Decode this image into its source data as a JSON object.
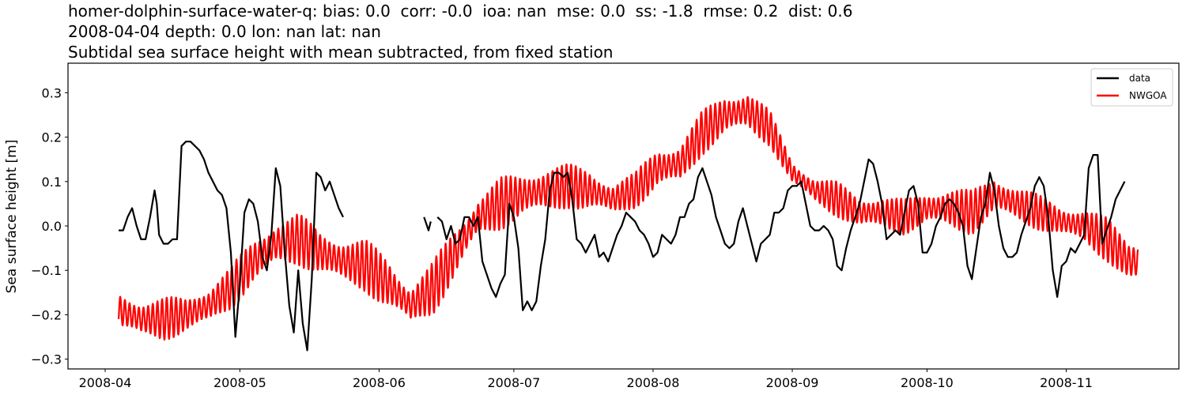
{
  "titles": {
    "line1": "homer-dolphin-surface-water-q: bias: 0.0  corr: -0.0  ioa: nan  mse: 0.0  ss: -1.8  rmse: 0.2  dist: 0.6",
    "line2": "2008-04-04 depth: 0.0 lon: nan lat: nan",
    "line3": "Subtidal sea surface height with mean subtracted, from fixed station"
  },
  "colors": {
    "data": "#000000",
    "model": "#ff0000",
    "axis": "#000000",
    "legend_border": "#cccccc"
  },
  "chart_data": {
    "type": "line",
    "title": "homer-dolphin-surface-water-q: bias: 0.0  corr: -0.0  ioa: nan  mse: 0.0  ss: -1.8  rmse: 0.2  dist: 0.6 / 2008-04-04 depth: 0.0 lon: nan lat: nan / Subtidal sea surface height with mean subtracted, from fixed station",
    "xlabel": "",
    "ylabel": "Sea surface height [m]",
    "ylim": [
      -0.33,
      0.36
    ],
    "xlim": [
      "2008-03-27",
      "2008-11-24"
    ],
    "grid": false,
    "legend_position": "upper right",
    "xticks": [
      "2008-04",
      "2008-05",
      "2008-06",
      "2008-07",
      "2008-08",
      "2008-09",
      "2008-10",
      "2008-11"
    ],
    "yticks": [
      "0.3",
      "0.2",
      "0.1",
      "0.0",
      "−0.1",
      "−0.2",
      "−0.3"
    ],
    "series": [
      {
        "name": "data",
        "color": "#000000",
        "day_offset_from_2008_04_01": [
          3,
          4,
          5,
          6,
          7,
          8,
          9,
          10,
          11,
          11.5,
          12,
          13,
          14,
          15,
          16,
          17,
          18,
          19,
          20,
          21,
          22,
          23,
          24,
          25,
          26,
          27,
          28,
          29,
          30,
          31,
          32,
          33,
          34,
          35,
          36,
          37,
          38,
          39,
          40,
          41,
          42,
          43,
          44,
          45,
          46,
          47,
          48,
          49,
          50,
          51,
          52,
          53,
          null,
          71,
          72,
          72.5,
          null,
          74,
          75,
          76,
          77,
          78,
          79,
          80,
          81,
          82,
          83,
          84,
          85,
          86,
          87,
          88,
          89,
          90,
          91,
          92,
          93,
          94,
          95,
          96,
          97,
          98,
          99,
          100,
          101,
          102,
          103,
          104,
          105,
          106,
          107,
          108,
          109,
          110,
          111,
          112,
          113,
          114,
          115,
          116,
          117,
          118,
          119,
          120,
          121,
          122,
          123,
          124,
          125,
          126,
          127,
          128,
          129,
          130,
          131,
          132,
          133,
          134,
          135,
          136,
          137,
          138,
          139,
          140,
          141,
          142,
          143,
          144,
          145,
          146,
          147,
          148,
          149,
          150,
          151,
          152,
          153,
          154,
          155,
          156,
          157,
          158,
          159,
          160,
          161,
          162,
          163,
          164,
          165,
          166,
          167,
          168,
          169,
          170,
          171,
          172,
          173,
          174,
          175,
          176,
          177,
          178,
          179,
          180,
          181,
          182,
          183,
          184,
          185,
          186,
          187,
          188,
          189,
          190,
          191,
          192,
          193,
          194,
          195,
          196,
          197,
          198,
          199,
          200,
          201,
          202,
          203,
          204,
          205,
          206,
          207,
          208,
          209,
          210,
          211,
          212,
          213,
          214,
          215,
          216,
          217,
          218,
          219,
          220,
          221,
          222,
          223,
          224,
          225,
          226,
          227
        ],
        "values": [
          -0.01,
          -0.01,
          0.02,
          0.04,
          0.0,
          -0.03,
          -0.03,
          0.02,
          0.08,
          0.05,
          -0.02,
          -0.04,
          -0.04,
          -0.03,
          -0.03,
          0.18,
          0.19,
          0.19,
          0.18,
          0.17,
          0.15,
          0.12,
          0.1,
          0.08,
          0.07,
          0.04,
          -0.06,
          -0.25,
          -0.13,
          0.03,
          0.06,
          0.05,
          0.01,
          -0.07,
          -0.1,
          -0.02,
          0.13,
          0.09,
          -0.06,
          -0.18,
          -0.24,
          -0.1,
          -0.22,
          -0.28,
          -0.12,
          0.12,
          0.11,
          0.08,
          0.1,
          0.07,
          0.04,
          0.02,
          null,
          0.02,
          -0.01,
          0.01,
          null,
          0.02,
          0.01,
          -0.03,
          0.0,
          -0.04,
          -0.03,
          0.02,
          0.02,
          0.0,
          0.02,
          -0.08,
          -0.11,
          -0.14,
          -0.16,
          -0.13,
          -0.11,
          0.05,
          0.02,
          -0.05,
          -0.19,
          -0.17,
          -0.19,
          -0.17,
          -0.09,
          -0.03,
          0.08,
          0.12,
          0.12,
          0.11,
          0.12,
          0.06,
          -0.03,
          -0.04,
          -0.06,
          -0.04,
          -0.02,
          -0.07,
          -0.06,
          -0.08,
          -0.05,
          -0.02,
          0.0,
          0.03,
          0.02,
          0.01,
          -0.01,
          -0.02,
          -0.04,
          -0.07,
          -0.06,
          -0.02,
          -0.03,
          -0.04,
          -0.02,
          0.02,
          0.02,
          0.05,
          0.06,
          0.11,
          0.13,
          0.1,
          0.07,
          0.02,
          -0.01,
          -0.04,
          -0.05,
          -0.04,
          0.01,
          0.04,
          0.0,
          -0.04,
          -0.08,
          -0.04,
          -0.03,
          -0.02,
          0.03,
          0.03,
          0.04,
          0.08,
          0.09,
          0.09,
          0.1,
          0.05,
          0.0,
          -0.01,
          -0.01,
          0.0,
          -0.01,
          -0.03,
          -0.09,
          -0.1,
          -0.05,
          -0.01,
          0.02,
          0.05,
          0.1,
          0.15,
          0.14,
          0.1,
          0.05,
          -0.03,
          -0.02,
          -0.01,
          -0.02,
          0.03,
          0.08,
          0.09,
          0.05,
          -0.06,
          -0.06,
          -0.04,
          0.0,
          0.02,
          0.05,
          0.06,
          0.05,
          0.03,
          0.0,
          -0.09,
          -0.12,
          -0.05,
          0.02,
          0.05,
          0.12,
          0.08,
          0.0,
          -0.05,
          -0.07,
          -0.07,
          -0.06,
          -0.02,
          0.01,
          0.04,
          0.09,
          0.11,
          0.09,
          0.02,
          -0.1,
          -0.16,
          -0.09,
          -0.08,
          -0.05,
          -0.06,
          -0.04,
          -0.02,
          0.13,
          0.16,
          0.16,
          -0.04,
          -0.01,
          0.02,
          0.06,
          0.08,
          0.1,
          0.11,
          0.12,
          0.13,
          0.1,
          0.07,
          0.08,
          0.09,
          0.1,
          -0.02,
          0.0,
          0.04,
          0.12,
          0.13,
          0.18,
          0.18,
          0.17,
          0.19,
          0.18,
          0.18,
          0.17,
          0.15,
          0.1,
          0.04,
          0.02,
          0.06,
          0.11,
          0.12,
          0.12,
          0.06,
          0.02,
          -0.07,
          -0.18,
          -0.26,
          -0.23,
          -0.08,
          0.03,
          0.05,
          0.05
        ]
      },
      {
        "name": "NWGOA",
        "color": "#ff0000",
        "description": "tidal-oscillating model; mean (subtidal) and half-amplitude envelope sampled every 5 days",
        "day_offset_from_2008_04_01": [
          3,
          8,
          13,
          18,
          23,
          28,
          33,
          38,
          43,
          48,
          53,
          58,
          63,
          68,
          73,
          78,
          83,
          88,
          93,
          98,
          103,
          108,
          113,
          118,
          123,
          128,
          133,
          138,
          143,
          148,
          153,
          158,
          163,
          168,
          173,
          178,
          183,
          188,
          193,
          198,
          203,
          208,
          213,
          218,
          223,
          228,
          230
        ],
        "mean": [
          -0.19,
          -0.21,
          -0.21,
          -0.2,
          -0.18,
          -0.14,
          -0.08,
          -0.04,
          -0.03,
          -0.06,
          -0.08,
          -0.09,
          -0.13,
          -0.18,
          -0.14,
          -0.06,
          0.02,
          0.05,
          0.07,
          0.08,
          0.09,
          0.08,
          0.06,
          0.08,
          0.13,
          0.14,
          0.21,
          0.25,
          0.26,
          0.22,
          0.12,
          0.08,
          0.06,
          0.03,
          0.03,
          0.02,
          0.04,
          0.04,
          0.03,
          0.07,
          0.05,
          0.03,
          0.01,
          0.0,
          -0.03,
          -0.08,
          -0.08
        ],
        "amplitude": [
          0.04,
          0.05,
          0.05,
          0.04,
          0.05,
          0.05,
          0.05,
          0.06,
          0.06,
          0.05,
          0.06,
          0.06,
          0.06,
          0.05,
          0.06,
          0.06,
          0.05,
          0.06,
          0.05,
          0.06,
          0.05,
          0.05,
          0.04,
          0.04,
          0.05,
          0.05,
          0.05,
          0.05,
          0.05,
          0.04,
          0.03,
          0.03,
          0.04,
          0.04,
          0.04,
          0.04,
          0.04,
          0.05,
          0.05,
          0.05,
          0.04,
          0.04,
          0.04,
          0.04,
          0.05,
          0.06,
          0.06
        ]
      }
    ]
  },
  "legend": {
    "items": [
      {
        "label": "data",
        "color": "#000000"
      },
      {
        "label": "NWGOA",
        "color": "#ff0000"
      }
    ]
  }
}
